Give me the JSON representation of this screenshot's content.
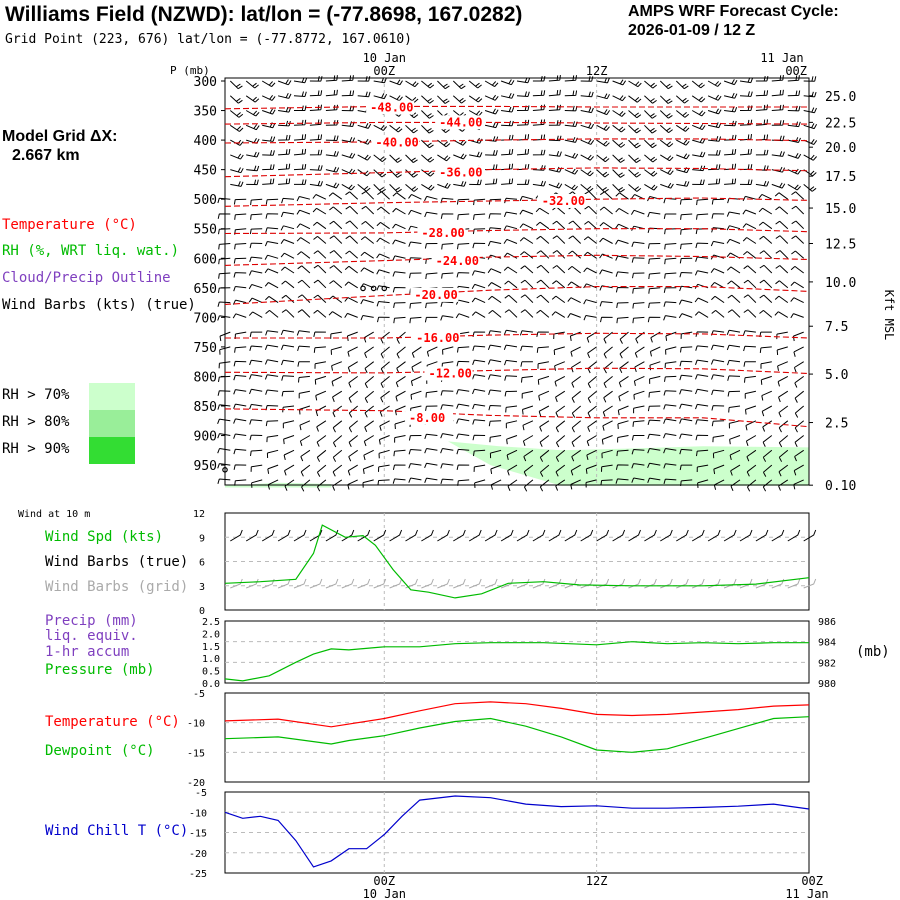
{
  "header": {
    "title": "Williams Field (NZWD):  lat/lon = (-77.8698, 167.0282)",
    "grid_point": "Grid Point (223, 676) lat/lon = (-77.8772, 167.0610)",
    "cycle_label": "AMPS WRF Forecast Cycle:",
    "cycle_value": "2026-01-09 / 12  Z"
  },
  "side": {
    "model_grid_title": "Model Grid ΔX:",
    "model_grid_value": "2.667 km",
    "temperature_label": "Temperature (°C)",
    "rh_label": "RH (%, WRT liq. wat.)",
    "cloud_label": "Cloud/Precip Outline",
    "wind_label": "Wind Barbs (kts) (true)",
    "rh70": "RH > 70%",
    "rh80": "RH > 80%",
    "rh90": "RH > 90%",
    "wind10m_title": "Wind at 10 m",
    "wind_spd_label": "Wind Spd (kts)",
    "wind_barbs_true": "Wind Barbs (true)",
    "wind_barbs_grid": "Wind Barbs (grid)",
    "precip_1": "Precip (mm)",
    "precip_2": "liq. equiv.",
    "precip_3": "1-hr accum",
    "pressure_label": "Pressure (mb)",
    "temp2_label": "Temperature (°C)",
    "dew_label": "Dewpoint (°C)",
    "windchill_label": "Wind Chill T (°C)",
    "mb_unit": "(mb)"
  },
  "colors": {
    "temperature": "#ff0000",
    "contour": "#dd0000",
    "rh": "#00bb00",
    "cloud": "#7f3fbf",
    "grid_barbs": "#aaaaaa",
    "windchill": "#0000cc",
    "rh70": "#ccffcc",
    "rh80": "#99ee99",
    "rh90": "#33dd33"
  },
  "chart_data": [
    {
      "type": "contour",
      "name": "cross_section",
      "ylabel": "P (mb)",
      "right_axis_label": "Kft MSL",
      "time_axis_top": [
        {
          "date": "10 Jan",
          "time": "00Z"
        },
        {
          "date": "",
          "time": "12Z"
        },
        {
          "date": "11 Jan",
          "time": "00Z"
        }
      ],
      "time_axis_bottom": [
        {
          "time": "00Z",
          "date": "10 Jan"
        },
        {
          "time": "12Z",
          "date": ""
        },
        {
          "time": "00Z",
          "date": "11 Jan"
        }
      ],
      "x_range_hours": [
        -9,
        24
      ],
      "pressure_ticks": [
        "300",
        "350",
        "400",
        "450",
        "500",
        "550",
        "600",
        "650",
        "700",
        "750",
        "800",
        "850",
        "900",
        "950"
      ],
      "height_ticks": [
        "25.0",
        "22.5",
        "20.0",
        "17.5",
        "15.0",
        "12.5",
        "10.0",
        "7.5",
        "5.0",
        "2.5",
        "0.10"
      ],
      "height_tick_pressures": [
        325,
        370,
        412,
        461,
        515,
        575,
        640,
        715,
        796,
        878,
        984
      ],
      "isotherm_labels": [
        {
          "text": "-48.00",
          "t": -0.8,
          "p": 345
        },
        {
          "text": "-44.00",
          "t": 3.1,
          "p": 370
        },
        {
          "text": "-40.00",
          "t": -0.5,
          "p": 404
        },
        {
          "text": "-36.00",
          "t": 3.1,
          "p": 455
        },
        {
          "text": "-32.00",
          "t": 8.9,
          "p": 503
        },
        {
          "text": "-28.00",
          "t": 2.1,
          "p": 557
        },
        {
          "text": "-24.00",
          "t": 2.9,
          "p": 605
        },
        {
          "text": "-20.00",
          "t": 1.7,
          "p": 662
        },
        {
          "text": "-16.00",
          "t": 1.8,
          "p": 735
        },
        {
          "text": "-12.00",
          "t": 2.5,
          "p": 795
        },
        {
          "text": "-8.00",
          "t": 1.4,
          "p": 870
        }
      ],
      "isotherms_p": [
        {
          "t": [
            -9,
            0,
            6,
            12,
            18,
            24
          ],
          "p": [
            347,
            343,
            343,
            344,
            344,
            344
          ]
        },
        {
          "t": [
            -9,
            0,
            6,
            12,
            18,
            24
          ],
          "p": [
            373,
            370,
            370,
            371,
            372,
            373
          ]
        },
        {
          "t": [
            -9,
            0,
            6,
            12,
            18,
            24
          ],
          "p": [
            405,
            403,
            400,
            398,
            398,
            401
          ]
        },
        {
          "t": [
            -9,
            0,
            6,
            12,
            18,
            24
          ],
          "p": [
            462,
            455,
            450,
            447,
            448,
            452
          ]
        },
        {
          "t": [
            -9,
            0,
            6,
            12,
            18,
            24
          ],
          "p": [
            512,
            506,
            503,
            500,
            498,
            502
          ]
        },
        {
          "t": [
            -9,
            0,
            6,
            12,
            18,
            24
          ],
          "p": [
            558,
            557,
            553,
            550,
            550,
            555
          ]
        },
        {
          "t": [
            -9,
            0,
            6,
            12,
            18,
            24
          ],
          "p": [
            612,
            604,
            598,
            595,
            597,
            602
          ]
        },
        {
          "t": [
            -9,
            0,
            6,
            12,
            18,
            24
          ],
          "p": [
            678,
            663,
            654,
            648,
            648,
            656
          ]
        },
        {
          "t": [
            -9,
            0,
            6,
            12,
            18,
            24
          ],
          "p": [
            735,
            735,
            730,
            727,
            728,
            735
          ]
        },
        {
          "t": [
            -9,
            0,
            6,
            12,
            18,
            24
          ],
          "p": [
            793,
            794,
            790,
            786,
            787,
            795
          ]
        },
        {
          "t": [
            -9,
            0,
            6,
            12,
            18,
            24
          ],
          "p": [
            855,
            858,
            866,
            870,
            870,
            885
          ]
        }
      ],
      "rh70_regions": [
        {
          "t": [
            3.6,
            6.5,
            10,
            14,
            18,
            24,
            24,
            14,
            10,
            6.0,
            3.6
          ],
          "p": [
            910,
            918,
            925,
            922,
            918,
            920,
            985,
            985,
            985,
            950,
            910
          ]
        },
        {
          "t": [
            -9,
            -6,
            -3,
            -3,
            -9
          ],
          "p": [
            985,
            980,
            982,
            988,
            988
          ]
        }
      ],
      "cloud_markers": [
        {
          "t": -1.2,
          "p": 651
        },
        {
          "t": -0.6,
          "p": 651
        },
        {
          "t": 0.0,
          "p": 651
        },
        {
          "t": -9,
          "p": 958
        }
      ]
    },
    {
      "type": "line",
      "name": "wind_10m",
      "yticks": [
        "12",
        "9",
        "6",
        "3",
        "0"
      ],
      "ylim": [
        0,
        12
      ],
      "series": [
        {
          "name": "Wind Spd (kts)",
          "t": [
            -9,
            -7,
            -5,
            -4,
            -3.5,
            -2.2,
            -1.2,
            -0.5,
            0.5,
            1.5,
            2.5,
            4,
            5.5,
            7,
            9,
            11,
            14,
            18,
            21,
            24
          ],
          "values": [
            3.3,
            3.5,
            3.8,
            7,
            10.5,
            9.0,
            9.2,
            8.0,
            5,
            2.5,
            2.2,
            1.5,
            2.0,
            3.3,
            3.5,
            3.1,
            3.0,
            3.0,
            3.2,
            4.0
          ]
        }
      ]
    },
    {
      "type": "line",
      "name": "precip_pressure",
      "left_ticks": [
        "2.5",
        "2.0",
        "1.5",
        "1.0",
        "0.5",
        "0.0"
      ],
      "right_ticks": [
        "986",
        "984",
        "982",
        "980"
      ],
      "ylim_pressure": [
        980,
        986
      ],
      "series": [
        {
          "name": "Pressure (mb)",
          "t": [
            -9,
            -8,
            -6.5,
            -5,
            -4,
            -3,
            -2,
            0,
            2,
            4,
            6,
            9,
            12,
            14,
            16,
            18,
            20,
            22,
            24
          ],
          "values": [
            980.4,
            980.2,
            980.7,
            982.0,
            982.8,
            983.3,
            983.2,
            983.5,
            983.5,
            983.8,
            983.9,
            983.9,
            983.7,
            984.0,
            983.8,
            983.9,
            983.8,
            983.9,
            983.9
          ]
        }
      ]
    },
    {
      "type": "line",
      "name": "temperature_dewpoint",
      "yticks": [
        "-5",
        "-10",
        "-15",
        "-20"
      ],
      "ylim": [
        -20,
        -5
      ],
      "series": [
        {
          "name": "Temperature (°C)",
          "t": [
            -9,
            -6,
            -3,
            0,
            2,
            4,
            6,
            8,
            10,
            12,
            14,
            16,
            18,
            20,
            22,
            24
          ],
          "values": [
            -9.7,
            -9.4,
            -10.7,
            -9.3,
            -8.0,
            -6.8,
            -6.5,
            -6.8,
            -7.6,
            -8.6,
            -8.8,
            -8.6,
            -8.2,
            -7.8,
            -7.2,
            -7.0
          ]
        },
        {
          "name": "Dewpoint (°C)",
          "t": [
            -9,
            -6,
            -3,
            -2,
            0,
            2,
            4,
            6,
            8,
            10,
            12,
            14,
            16,
            18,
            20,
            22,
            24
          ],
          "values": [
            -12.7,
            -12.4,
            -13.6,
            -13.0,
            -12.2,
            -10.9,
            -9.8,
            -9.3,
            -10.6,
            -12.4,
            -14.6,
            -15.0,
            -14.4,
            -12.7,
            -11.0,
            -9.3,
            -9.0
          ]
        }
      ]
    },
    {
      "type": "line",
      "name": "wind_chill",
      "yticks": [
        "-5",
        "-10",
        "-15",
        "-20",
        "-25"
      ],
      "ylim": [
        -25,
        -5
      ],
      "series": [
        {
          "name": "Wind Chill T (°C)",
          "t": [
            -9,
            -8,
            -7,
            -6,
            -5,
            -4,
            -3,
            -2,
            -1,
            0,
            1,
            2,
            4,
            6,
            8,
            10,
            12,
            14,
            16,
            18,
            20,
            22,
            24
          ],
          "values": [
            -10.0,
            -11.5,
            -11.0,
            -12.0,
            -17.0,
            -23.5,
            -22.0,
            -19.0,
            -19.0,
            -15.5,
            -11.0,
            -7.0,
            -6.0,
            -6.4,
            -8.0,
            -8.6,
            -8.4,
            -9.0,
            -9.0,
            -8.8,
            -8.5,
            -8.0,
            -9.2
          ]
        }
      ]
    }
  ]
}
